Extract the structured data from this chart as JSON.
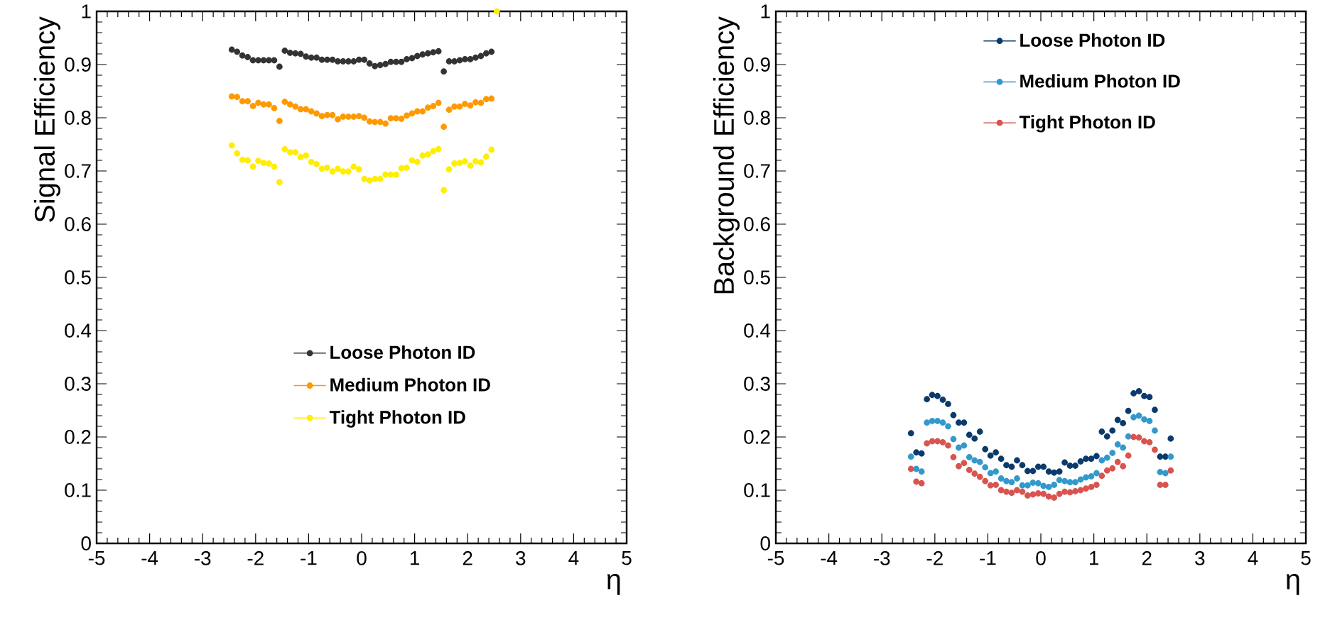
{
  "chart_data": [
    {
      "type": "scatter",
      "xlabel": "η",
      "ylabel": "Signal Efficiency",
      "legend": "bottom",
      "x": [
        -2.45,
        -2.35,
        -2.25,
        -2.15,
        -2.05,
        -1.95,
        -1.85,
        -1.75,
        -1.65,
        -1.55,
        -1.45,
        -1.35,
        -1.25,
        -1.15,
        -1.05,
        -0.95,
        -0.85,
        -0.75,
        -0.65,
        -0.55,
        -0.45,
        -0.35,
        -0.25,
        -0.15,
        -0.05,
        0.05,
        0.15,
        0.25,
        0.35,
        0.45,
        0.55,
        0.65,
        0.75,
        0.85,
        0.95,
        1.05,
        1.15,
        1.25,
        1.35,
        1.45,
        1.55,
        1.65,
        1.75,
        1.85,
        1.95,
        2.05,
        2.15,
        2.25,
        2.35,
        2.45,
        2.55
      ],
      "series": [
        {
          "name": "Loose Photon ID",
          "color": "#333333",
          "values": [
            0.928,
            0.924,
            0.917,
            0.914,
            0.908,
            0.908,
            0.908,
            0.908,
            0.908,
            0.896,
            0.926,
            0.922,
            0.921,
            0.92,
            0.915,
            0.913,
            0.913,
            0.909,
            0.909,
            0.909,
            0.906,
            0.906,
            0.906,
            0.906,
            0.909,
            0.909,
            0.902,
            0.897,
            0.899,
            0.901,
            0.905,
            0.905,
            0.905,
            0.91,
            0.912,
            0.916,
            0.919,
            0.921,
            0.923,
            0.925,
            0.887,
            0.906,
            0.906,
            0.908,
            0.91,
            0.91,
            0.913,
            0.916,
            0.921,
            0.924,
            null
          ]
        },
        {
          "name": "Medium Photon ID",
          "color": "#ff9900",
          "values": [
            0.84,
            0.839,
            0.831,
            0.831,
            0.822,
            0.828,
            0.825,
            0.825,
            0.818,
            0.794,
            0.83,
            0.825,
            0.821,
            0.816,
            0.816,
            0.812,
            0.808,
            0.803,
            0.805,
            0.805,
            0.797,
            0.802,
            0.802,
            0.802,
            0.803,
            0.8,
            0.793,
            0.792,
            0.792,
            0.789,
            0.799,
            0.799,
            0.798,
            0.804,
            0.808,
            0.812,
            0.812,
            0.819,
            0.822,
            0.828,
            0.783,
            0.815,
            0.821,
            0.821,
            0.826,
            0.823,
            0.829,
            0.828,
            0.835,
            0.836,
            null
          ]
        },
        {
          "name": "Tight Photon ID",
          "color": "#ffee00",
          "values": [
            0.748,
            0.733,
            0.721,
            0.72,
            0.708,
            0.719,
            0.715,
            0.714,
            0.708,
            0.679,
            0.741,
            0.735,
            0.735,
            0.726,
            0.729,
            0.717,
            0.713,
            0.704,
            0.706,
            0.699,
            0.704,
            0.699,
            0.699,
            0.708,
            0.703,
            0.685,
            0.682,
            0.685,
            0.685,
            0.693,
            0.693,
            0.693,
            0.705,
            0.706,
            0.72,
            0.717,
            0.729,
            0.731,
            0.737,
            0.741,
            0.664,
            0.703,
            0.714,
            0.715,
            0.718,
            0.71,
            0.718,
            0.716,
            0.727,
            0.74,
            1.0
          ]
        }
      ],
      "xlim": [
        -5,
        5
      ],
      "ylim": [
        0,
        1
      ],
      "xticks": [
        -5,
        -4,
        -3,
        -2,
        -1,
        0,
        1,
        2,
        3,
        4,
        5
      ],
      "yticks": [
        0,
        0.1,
        0.2,
        0.3,
        0.4,
        0.5,
        0.6,
        0.7,
        0.8,
        0.9,
        1
      ]
    },
    {
      "type": "scatter",
      "xlabel": "η",
      "ylabel": "Background Efficiency",
      "legend": "top",
      "x": [
        -2.45,
        -2.35,
        -2.25,
        -2.15,
        -2.05,
        -1.95,
        -1.85,
        -1.75,
        -1.65,
        -1.55,
        -1.45,
        -1.35,
        -1.25,
        -1.15,
        -1.05,
        -0.95,
        -0.85,
        -0.75,
        -0.65,
        -0.55,
        -0.45,
        -0.35,
        -0.25,
        -0.15,
        -0.05,
        0.05,
        0.15,
        0.25,
        0.35,
        0.45,
        0.55,
        0.65,
        0.75,
        0.85,
        0.95,
        1.05,
        1.15,
        1.25,
        1.35,
        1.45,
        1.55,
        1.65,
        1.75,
        1.85,
        1.95,
        2.05,
        2.15,
        2.25,
        2.35,
        2.45
      ],
      "series": [
        {
          "name": "Loose Photon ID",
          "color": "#0b3a6b",
          "values": [
            0.207,
            0.171,
            0.169,
            0.271,
            0.279,
            0.277,
            0.27,
            0.262,
            0.241,
            0.227,
            0.227,
            0.204,
            0.197,
            0.21,
            0.177,
            0.165,
            0.171,
            0.159,
            0.147,
            0.144,
            0.156,
            0.147,
            0.136,
            0.136,
            0.144,
            0.144,
            0.135,
            0.133,
            0.135,
            0.152,
            0.146,
            0.146,
            0.154,
            0.159,
            0.159,
            0.164,
            0.21,
            0.201,
            0.212,
            0.232,
            0.226,
            0.249,
            0.282,
            0.286,
            0.277,
            0.275,
            0.251,
            0.163,
            0.163,
            0.197
          ]
        },
        {
          "name": "Medium Photon ID",
          "color": "#3399cc",
          "values": [
            0.163,
            0.14,
            0.135,
            0.227,
            0.23,
            0.23,
            0.227,
            0.22,
            0.196,
            0.18,
            0.184,
            0.162,
            0.156,
            0.153,
            0.143,
            0.132,
            0.135,
            0.122,
            0.117,
            0.115,
            0.122,
            0.109,
            0.109,
            0.114,
            0.113,
            0.108,
            0.106,
            0.11,
            0.119,
            0.117,
            0.115,
            0.115,
            0.12,
            0.124,
            0.126,
            0.132,
            0.156,
            0.161,
            0.17,
            0.186,
            0.18,
            0.201,
            0.237,
            0.24,
            0.233,
            0.23,
            0.212,
            0.134,
            0.132,
            0.163
          ]
        },
        {
          "name": "Tight Photon ID",
          "color": "#d9534f",
          "values": [
            0.14,
            0.116,
            0.113,
            0.188,
            0.192,
            0.192,
            0.19,
            0.184,
            0.162,
            0.145,
            0.151,
            0.138,
            0.131,
            0.125,
            0.117,
            0.109,
            0.11,
            0.1,
            0.097,
            0.095,
            0.1,
            0.097,
            0.09,
            0.092,
            0.094,
            0.093,
            0.088,
            0.086,
            0.093,
            0.097,
            0.096,
            0.098,
            0.1,
            0.103,
            0.106,
            0.11,
            0.127,
            0.137,
            0.141,
            0.153,
            0.145,
            0.165,
            0.2,
            0.199,
            0.192,
            0.19,
            0.176,
            0.11,
            0.11,
            0.137
          ]
        }
      ],
      "xlim": [
        -5,
        5
      ],
      "ylim": [
        0,
        1
      ],
      "xticks": [
        -5,
        -4,
        -3,
        -2,
        -1,
        0,
        1,
        2,
        3,
        4,
        5
      ],
      "yticks": [
        0,
        0.1,
        0.2,
        0.3,
        0.4,
        0.5,
        0.6,
        0.7,
        0.8,
        0.9,
        1
      ]
    }
  ]
}
